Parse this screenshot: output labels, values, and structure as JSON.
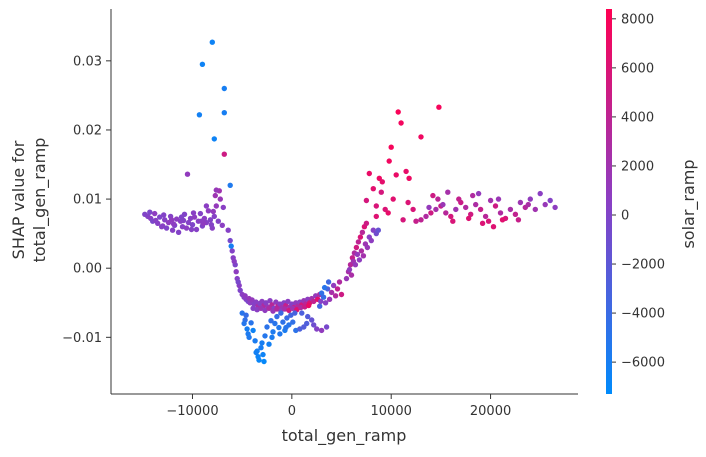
{
  "chart_data": {
    "type": "scatter",
    "xlabel": "total_gen_ramp",
    "ylabel_line1": "SHAP value for",
    "ylabel_line2": "total_gen_ramp",
    "colorbar_label": "solar_ramp",
    "xlim": [
      -18200,
      28800
    ],
    "ylim": [
      -0.0182,
      0.0375
    ],
    "xticks": [
      -10000,
      0,
      10000,
      20000
    ],
    "xtick_labels": [
      "−10000",
      "0",
      "10000",
      "20000"
    ],
    "yticks": [
      -0.01,
      0.0,
      0.01,
      0.02,
      0.03
    ],
    "ytick_labels": [
      "−0.01",
      "0.00",
      "0.01",
      "0.02",
      "0.03"
    ],
    "color_range": [
      -7300,
      8400
    ],
    "color_ticks": [
      -6000,
      -4000,
      -2000,
      0,
      2000,
      4000,
      6000,
      8000
    ],
    "color_tick_labels": [
      "−6000",
      "−4000",
      "−2000",
      "0",
      "2000",
      "4000",
      "6000",
      "8000"
    ],
    "color_low": "#008bfb",
    "color_high": "#ff0052",
    "grid": false,
    "points": [
      [
        -8000,
        0.0327,
        -6500
      ],
      [
        -9000,
        0.0295,
        -6500
      ],
      [
        -6800,
        0.026,
        -6000
      ],
      [
        -9300,
        0.0222,
        -6200
      ],
      [
        -6800,
        0.0225,
        -6000
      ],
      [
        -7800,
        0.0187,
        -6500
      ],
      [
        -6800,
        0.0165,
        5000
      ],
      [
        -6200,
        0.012,
        -5500
      ],
      [
        -10500,
        0.0136,
        1000
      ],
      [
        -14800,
        0.0078,
        0
      ],
      [
        -14500,
        0.0075,
        200
      ],
      [
        -14200,
        0.0072,
        500
      ],
      [
        -14000,
        0.0068,
        -300
      ],
      [
        -13800,
        0.0079,
        800
      ],
      [
        -13500,
        0.0065,
        400
      ],
      [
        -13300,
        0.0074,
        -100
      ],
      [
        -13000,
        0.0061,
        600
      ],
      [
        -12800,
        0.007,
        300
      ],
      [
        -12600,
        0.0058,
        0
      ],
      [
        -12400,
        0.0066,
        900
      ],
      [
        -12200,
        0.0075,
        200
      ],
      [
        -12000,
        0.0055,
        400
      ],
      [
        -11800,
        0.0062,
        -200
      ],
      [
        -11600,
        0.0071,
        700
      ],
      [
        -11400,
        0.0052,
        100
      ],
      [
        -11200,
        0.0068,
        500
      ],
      [
        -11000,
        0.006,
        300
      ],
      [
        -10800,
        0.0078,
        0
      ],
      [
        -10600,
        0.0058,
        600
      ],
      [
        -10400,
        0.0066,
        200
      ],
      [
        -10200,
        0.0072,
        400
      ],
      [
        -10000,
        0.0063,
        -100
      ],
      [
        -9800,
        0.0074,
        800
      ],
      [
        -9600,
        0.0056,
        300
      ],
      [
        -9400,
        0.0068,
        500
      ],
      [
        -9200,
        0.0079,
        200
      ],
      [
        -9000,
        0.0061,
        0
      ],
      [
        -8800,
        0.0072,
        700
      ],
      [
        -8600,
        0.0066,
        400
      ],
      [
        -8400,
        0.0083,
        900
      ],
      [
        -8200,
        0.007,
        100
      ],
      [
        -8000,
        0.0058,
        500
      ],
      [
        -7800,
        0.0075,
        300
      ],
      [
        -7600,
        0.009,
        1200
      ],
      [
        -7400,
        0.0068,
        200
      ],
      [
        -7200,
        0.01,
        1500
      ],
      [
        -7000,
        0.0062,
        600
      ],
      [
        -13700,
        0.0069,
        300
      ],
      [
        -12900,
        0.0077,
        100
      ],
      [
        -11900,
        0.0064,
        700
      ],
      [
        -10900,
        0.0069,
        200
      ],
      [
        -9900,
        0.008,
        500
      ],
      [
        -8900,
        0.0065,
        900
      ],
      [
        -7900,
        0.0082,
        1000
      ],
      [
        -7700,
        0.0105,
        1800
      ],
      [
        -8600,
        0.009,
        600
      ],
      [
        -14300,
        0.0081,
        -200
      ],
      [
        -13100,
        0.006,
        400
      ],
      [
        -12100,
        0.007,
        900
      ],
      [
        -11100,
        0.0074,
        0
      ],
      [
        -10100,
        0.0056,
        300
      ],
      [
        -9100,
        0.0068,
        700
      ],
      [
        -8100,
        0.0063,
        200
      ],
      [
        -7300,
        0.0112,
        2000
      ],
      [
        -7600,
        0.0113,
        1400
      ],
      [
        -6900,
        0.0088,
        500
      ],
      [
        -6400,
        0.0055,
        300
      ],
      [
        -6200,
        0.004,
        -500
      ],
      [
        -6000,
        0.0025,
        200
      ],
      [
        -6100,
        0.0032,
        -6000
      ],
      [
        -5900,
        0.0015,
        400
      ],
      [
        -5700,
        0.0005,
        -200
      ],
      [
        -5600,
        -0.0005,
        800
      ],
      [
        -5500,
        -0.0015,
        300
      ],
      [
        -5300,
        -0.0025,
        500
      ],
      [
        -5200,
        -0.0032,
        -100
      ],
      [
        -5000,
        -0.0038,
        600
      ],
      [
        -4800,
        -0.0042,
        200
      ],
      [
        -4600,
        -0.0045,
        400
      ],
      [
        -4400,
        -0.0048,
        -300
      ],
      [
        -4200,
        -0.005,
        700
      ],
      [
        -4000,
        -0.0046,
        1000
      ],
      [
        -3800,
        -0.0052,
        300
      ],
      [
        -3600,
        -0.0049,
        500
      ],
      [
        -3400,
        -0.0055,
        2500
      ],
      [
        -3200,
        -0.0051,
        200
      ],
      [
        -3000,
        -0.0048,
        800
      ],
      [
        -2800,
        -0.0054,
        3000
      ],
      [
        -2600,
        -0.005,
        400
      ],
      [
        -2400,
        -0.0056,
        1200
      ],
      [
        -2200,
        -0.0047,
        600
      ],
      [
        -2000,
        -0.0053,
        3500
      ],
      [
        -1800,
        -0.0058,
        200
      ],
      [
        -1600,
        -0.0049,
        900
      ],
      [
        -1400,
        -0.0055,
        4000
      ],
      [
        -1200,
        -0.0052,
        500
      ],
      [
        -1000,
        -0.0057,
        1800
      ],
      [
        -800,
        -0.005,
        300
      ],
      [
        -600,
        -0.0054,
        4500
      ],
      [
        -400,
        -0.0048,
        700
      ],
      [
        -200,
        -0.0056,
        2200
      ],
      [
        0,
        -0.0052,
        400
      ],
      [
        200,
        -0.0057,
        5000
      ],
      [
        400,
        -0.005,
        1000
      ],
      [
        600,
        -0.0055,
        3000
      ],
      [
        800,
        -0.0049,
        600
      ],
      [
        1000,
        -0.0053,
        5500
      ],
      [
        1200,
        -0.0047,
        1500
      ],
      [
        1400,
        -0.0052,
        3800
      ],
      [
        1600,
        -0.0045,
        800
      ],
      [
        1800,
        -0.005,
        6000
      ],
      [
        2000,
        -0.0044,
        2000
      ],
      [
        2200,
        -0.0048,
        4200
      ],
      [
        2400,
        -0.004,
        1200
      ],
      [
        2600,
        -0.0045,
        6500
      ],
      [
        2800,
        -0.0038,
        2600
      ],
      [
        -5800,
        0.001,
        600
      ],
      [
        -5400,
        -0.002,
        -400
      ],
      [
        -4700,
        -0.004,
        900
      ],
      [
        -4300,
        -0.0044,
        1300
      ],
      [
        -3900,
        -0.0058,
        200
      ],
      [
        -3500,
        -0.006,
        600
      ],
      [
        -3100,
        -0.0058,
        1600
      ],
      [
        -2700,
        -0.0061,
        900
      ],
      [
        -2300,
        -0.0058,
        2800
      ],
      [
        -1900,
        -0.0062,
        1400
      ],
      [
        -1500,
        -0.0059,
        3200
      ],
      [
        -1100,
        -0.0062,
        800
      ],
      [
        -700,
        -0.0059,
        2400
      ],
      [
        -300,
        -0.0061,
        5200
      ],
      [
        100,
        -0.0058,
        1800
      ],
      [
        500,
        -0.006,
        6200
      ],
      [
        900,
        -0.0057,
        2900
      ],
      [
        1300,
        -0.0056,
        4600
      ],
      [
        1700,
        -0.0054,
        7000
      ],
      [
        -5000,
        -0.0065,
        -5000
      ],
      [
        -4700,
        -0.0075,
        -4500
      ],
      [
        -4500,
        -0.0088,
        -6000
      ],
      [
        -4300,
        -0.01,
        -5500
      ],
      [
        -4600,
        -0.0068,
        -4200
      ],
      [
        -4100,
        -0.0079,
        -5000
      ],
      [
        -3900,
        -0.009,
        -6500
      ],
      [
        -3700,
        -0.0105,
        -5800
      ],
      [
        -3500,
        -0.012,
        -6200
      ],
      [
        -3300,
        -0.0133,
        -6800
      ],
      [
        -3100,
        -0.0115,
        -6000
      ],
      [
        -2900,
        -0.0125,
        -6500
      ],
      [
        -2700,
        -0.0098,
        -5200
      ],
      [
        -2500,
        -0.0085,
        -4800
      ],
      [
        -2300,
        -0.011,
        -6200
      ],
      [
        -2100,
        -0.0076,
        -4500
      ],
      [
        -1900,
        -0.0092,
        -5600
      ],
      [
        -1700,
        -0.008,
        -5000
      ],
      [
        -1500,
        -0.007,
        -4200
      ],
      [
        -1300,
        -0.0086,
        -5400
      ],
      [
        -1100,
        -0.0065,
        -3800
      ],
      [
        -900,
        -0.0078,
        -4600
      ],
      [
        -700,
        -0.009,
        -5800
      ],
      [
        -500,
        -0.0072,
        -4000
      ],
      [
        -300,
        -0.0082,
        -5000
      ],
      [
        -100,
        -0.0068,
        -3500
      ],
      [
        100,
        -0.0078,
        -4500
      ],
      [
        300,
        -0.0065,
        -3200
      ],
      [
        -3400,
        -0.0128,
        -6600
      ],
      [
        -2800,
        -0.0135,
        -7000
      ],
      [
        -3600,
        -0.0122,
        -6200
      ],
      [
        -4800,
        -0.008,
        -5200
      ],
      [
        -4400,
        -0.0095,
        -5600
      ],
      [
        -3000,
        -0.0108,
        -6000
      ],
      [
        -2000,
        -0.01,
        -5800
      ],
      [
        -1200,
        -0.0095,
        -5400
      ],
      [
        -600,
        -0.0086,
        -5000
      ],
      [
        400,
        -0.009,
        -4800
      ],
      [
        800,
        -0.0088,
        -3000
      ],
      [
        1200,
        -0.0085,
        -2500
      ],
      [
        1500,
        -0.008,
        -2800
      ],
      [
        2000,
        -0.0075,
        -1500
      ],
      [
        2500,
        -0.0088,
        200
      ],
      [
        3000,
        -0.009,
        1000
      ],
      [
        3500,
        -0.0085,
        -500
      ],
      [
        1000,
        -0.0065,
        -3000
      ],
      [
        1600,
        -0.007,
        -2600
      ],
      [
        2200,
        -0.0082,
        -1000
      ],
      [
        2800,
        -0.0055,
        -3500
      ],
      [
        3200,
        -0.0042,
        -4200
      ],
      [
        3600,
        -0.003,
        -3000
      ],
      [
        3400,
        -0.005,
        500
      ],
      [
        3800,
        -0.0045,
        1500
      ],
      [
        4000,
        -0.0035,
        2500
      ],
      [
        4200,
        -0.0025,
        1000
      ],
      [
        4400,
        -0.004,
        3200
      ],
      [
        4600,
        -0.003,
        4200
      ],
      [
        3000,
        -0.0036,
        -4500
      ],
      [
        3300,
        -0.0028,
        -5000
      ],
      [
        2900,
        -0.0048,
        300
      ],
      [
        4800,
        -0.002,
        3000
      ],
      [
        5000,
        -0.0038,
        5000
      ],
      [
        3700,
        -0.002,
        -3800
      ],
      [
        5500,
        -0.0015,
        1500
      ],
      [
        5700,
        -0.0005,
        2500
      ],
      [
        5900,
        0.0005,
        3500
      ],
      [
        6100,
        0.0015,
        4500
      ],
      [
        6300,
        0.0022,
        3000
      ],
      [
        6500,
        0.003,
        5200
      ],
      [
        6700,
        0.0038,
        4000
      ],
      [
        6900,
        0.0045,
        5800
      ],
      [
        7100,
        0.0052,
        3600
      ],
      [
        7300,
        0.006,
        6000
      ],
      [
        5800,
        -0.0002,
        1000
      ],
      [
        6200,
        0.001,
        2000
      ],
      [
        6600,
        0.002,
        1200
      ],
      [
        7000,
        0.0025,
        2800
      ],
      [
        7400,
        0.0035,
        1800
      ],
      [
        7800,
        0.0045,
        600
      ],
      [
        8200,
        0.0055,
        300
      ],
      [
        8500,
        0.005,
        -800
      ],
      [
        8700,
        0.0055,
        -1500
      ],
      [
        8000,
        0.004,
        800
      ],
      [
        7600,
        0.003,
        1500
      ],
      [
        6800,
        0.0012,
        900
      ],
      [
        6400,
        0.0005,
        1200
      ],
      [
        7200,
        0.0018,
        2200
      ],
      [
        6000,
        -0.001,
        2600
      ],
      [
        7500,
        0.0065,
        5000
      ],
      [
        7500,
        0.0098,
        5500
      ],
      [
        7800,
        0.0137,
        7000
      ],
      [
        8200,
        0.0115,
        6500
      ],
      [
        8500,
        0.009,
        5800
      ],
      [
        8800,
        0.013,
        7200
      ],
      [
        9100,
        0.0125,
        6600
      ],
      [
        9400,
        0.0085,
        6000
      ],
      [
        9700,
        0.008,
        6800
      ],
      [
        9800,
        0.0155,
        7500
      ],
      [
        10000,
        0.0175,
        7800
      ],
      [
        10500,
        0.0135,
        7000
      ],
      [
        10700,
        0.0226,
        8000
      ],
      [
        11000,
        0.021,
        7600
      ],
      [
        11500,
        0.014,
        6800
      ],
      [
        11800,
        0.013,
        7200
      ],
      [
        11700,
        0.0095,
        6000
      ],
      [
        12200,
        0.0085,
        5800
      ],
      [
        13000,
        0.019,
        7400
      ],
      [
        14800,
        0.0233,
        7800
      ],
      [
        8500,
        0.0075,
        6200
      ],
      [
        9000,
        0.011,
        5500
      ],
      [
        10200,
        0.01,
        6400
      ],
      [
        11200,
        0.007,
        5600
      ],
      [
        12500,
        0.0068,
        4500
      ],
      [
        13000,
        0.007,
        4000
      ],
      [
        13500,
        0.0075,
        3000
      ],
      [
        14000,
        0.008,
        5000
      ],
      [
        14500,
        0.0085,
        2500
      ],
      [
        15000,
        0.009,
        4500
      ],
      [
        15500,
        0.008,
        3500
      ],
      [
        16000,
        0.0075,
        5500
      ],
      [
        16500,
        0.0085,
        2000
      ],
      [
        17000,
        0.0095,
        4800
      ],
      [
        17500,
        0.0088,
        3200
      ],
      [
        18000,
        0.0078,
        5200
      ],
      [
        18500,
        0.0092,
        2800
      ],
      [
        19000,
        0.0085,
        4600
      ],
      [
        19500,
        0.0075,
        3600
      ],
      [
        20000,
        0.0098,
        2200
      ],
      [
        20500,
        0.009,
        5000
      ],
      [
        21000,
        0.008,
        3000
      ],
      [
        21500,
        0.0072,
        5600
      ],
      [
        22000,
        0.0085,
        2600
      ],
      [
        22500,
        0.0078,
        4200
      ],
      [
        23000,
        0.0095,
        1800
      ],
      [
        23500,
        0.0088,
        3400
      ],
      [
        24000,
        0.01,
        1000
      ],
      [
        24500,
        0.0085,
        2000
      ],
      [
        25000,
        0.0108,
        600
      ],
      [
        25500,
        0.0092,
        1400
      ],
      [
        26000,
        0.0098,
        200
      ],
      [
        26500,
        0.0088,
        800
      ],
      [
        14200,
        0.0105,
        5000
      ],
      [
        14700,
        0.01,
        3800
      ],
      [
        15700,
        0.011,
        2400
      ],
      [
        16800,
        0.01,
        4400
      ],
      [
        18200,
        0.0105,
        3000
      ],
      [
        19200,
        0.0065,
        6000
      ],
      [
        19800,
        0.0068,
        5800
      ],
      [
        20300,
        0.006,
        6200
      ],
      [
        21200,
        0.007,
        6400
      ],
      [
        20800,
        0.01,
        1600
      ],
      [
        22800,
        0.007,
        4600
      ],
      [
        13800,
        0.0088,
        1200
      ],
      [
        16200,
        0.0068,
        5800
      ],
      [
        17800,
        0.0072,
        6200
      ],
      [
        15200,
        0.0092,
        1600
      ],
      [
        18800,
        0.0108,
        1200
      ],
      [
        23800,
        0.0092,
        2600
      ]
    ]
  }
}
